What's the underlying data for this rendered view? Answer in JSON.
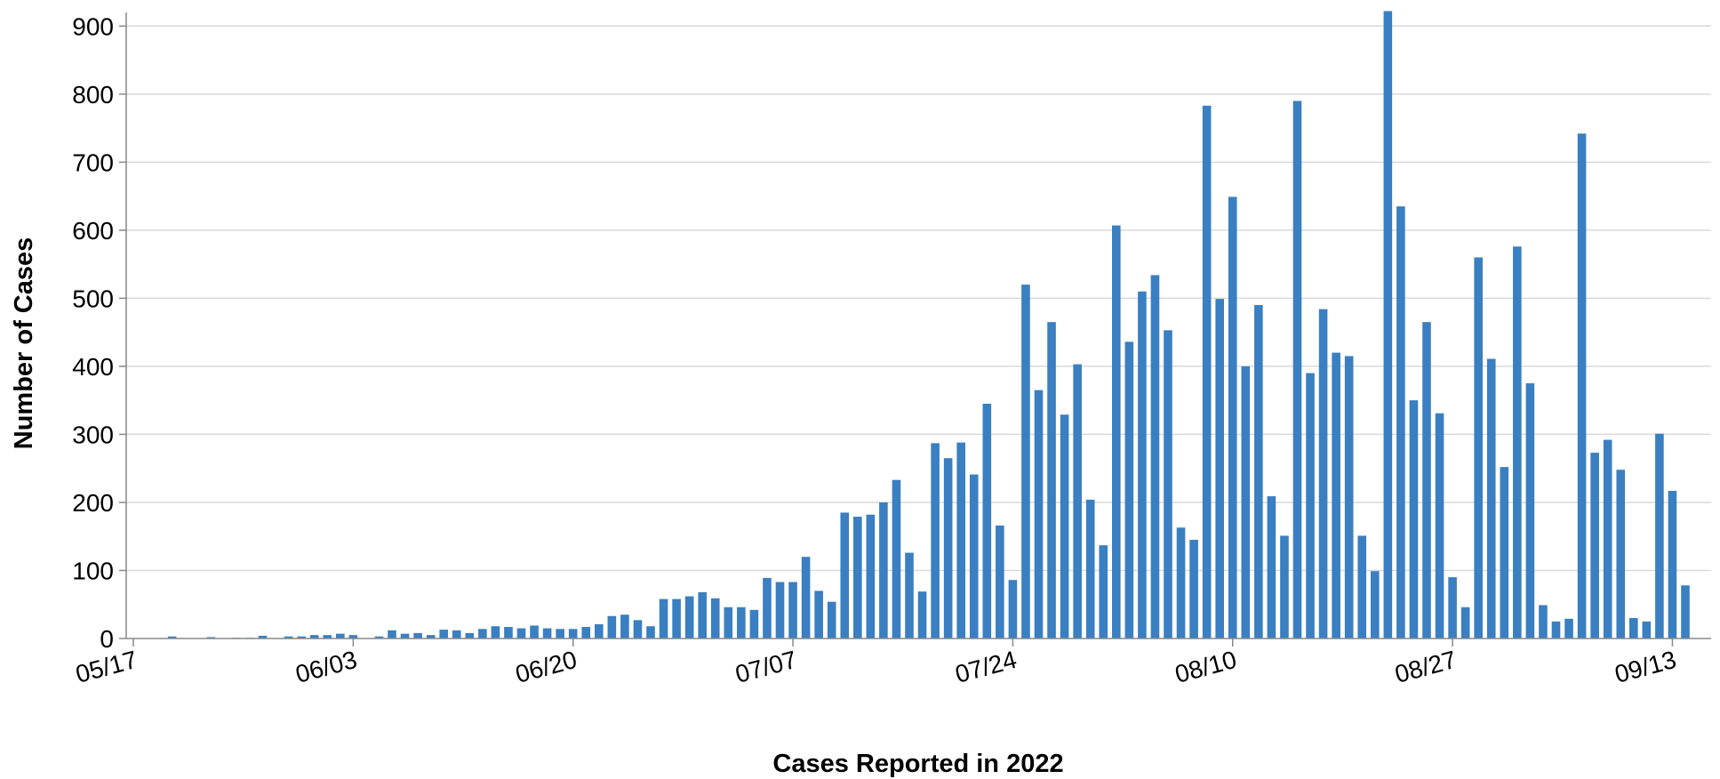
{
  "chart_data": {
    "type": "bar",
    "title": "",
    "xlabel": "Cases Reported in 2022",
    "ylabel": "Number of Cases",
    "bar_color": "#3a7fc1",
    "grid": true,
    "ylim": [
      0,
      920
    ],
    "y_ticks": [
      0,
      100,
      200,
      300,
      400,
      500,
      600,
      700,
      800,
      900
    ],
    "start_date": "2022-05-17",
    "x_tick_labels": [
      {
        "label": "05/17",
        "index": 0
      },
      {
        "label": "06/03",
        "index": 17
      },
      {
        "label": "06/20",
        "index": 34
      },
      {
        "label": "07/07",
        "index": 51
      },
      {
        "label": "07/24",
        "index": 68
      },
      {
        "label": "08/10",
        "index": 85
      },
      {
        "label": "08/27",
        "index": 102
      },
      {
        "label": "09/13",
        "index": 119
      }
    ],
    "values": [
      0,
      0,
      0,
      3,
      0,
      0,
      2,
      0,
      1,
      1,
      4,
      0,
      3,
      3,
      5,
      5,
      7,
      5,
      0,
      3,
      12,
      7,
      8,
      5,
      13,
      12,
      8,
      14,
      18,
      17,
      15,
      19,
      15,
      14,
      14,
      17,
      21,
      33,
      35,
      27,
      18,
      58,
      58,
      62,
      68,
      59,
      46,
      46,
      42,
      89,
      83,
      83,
      120,
      70,
      54,
      185,
      179,
      182,
      200,
      233,
      126,
      69,
      287,
      265,
      288,
      241,
      345,
      166,
      86,
      520,
      365,
      465,
      329,
      403,
      204,
      137,
      607,
      436,
      510,
      534,
      453,
      163,
      145,
      783,
      499,
      649,
      400,
      490,
      209,
      151,
      790,
      390,
      484,
      420,
      415,
      151,
      99,
      922,
      635,
      350,
      465,
      331,
      90,
      46,
      560,
      411,
      252,
      576,
      375,
      49,
      25,
      29,
      742,
      273,
      292,
      248,
      30,
      25,
      301,
      217,
      78
    ]
  }
}
